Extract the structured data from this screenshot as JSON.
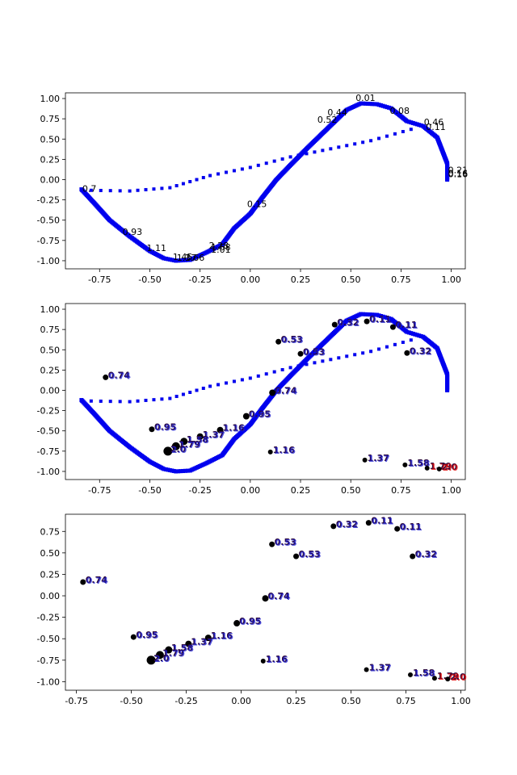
{
  "colors": {
    "curve": "#0000ee",
    "point": "#000000",
    "label_dark": "#2b0a3d",
    "label_blue": "#1a1acc",
    "label_red": "#dd0000",
    "axis": "#000000"
  },
  "chart_data": [
    {
      "type": "scatter",
      "xlim": [
        -0.92,
        1.07
      ],
      "ylim": [
        -1.1,
        1.07
      ],
      "xticks": [
        "-0.75",
        "-0.50",
        "-0.25",
        "0.00",
        "0.25",
        "0.50",
        "0.75",
        "1.00"
      ],
      "xtick_values": [
        -0.75,
        -0.5,
        -0.25,
        0.0,
        0.25,
        0.5,
        0.75,
        1.0
      ],
      "yticks": [
        "1.00",
        "0.75",
        "0.50",
        "0.25",
        "0.00",
        "-0.25",
        "-0.50",
        "-0.75",
        "-1.00"
      ],
      "ytick_values": [
        1.0,
        0.75,
        0.5,
        0.25,
        0.0,
        -0.25,
        -0.5,
        -0.75,
        -1.0
      ],
      "curve_anchors": [
        [
          -0.84,
          -0.12
        ],
        [
          -0.78,
          -0.28
        ],
        [
          -0.7,
          -0.5
        ],
        [
          -0.6,
          -0.7
        ],
        [
          -0.5,
          -0.88
        ],
        [
          -0.43,
          -0.97
        ],
        [
          -0.37,
          -1.0
        ],
        [
          -0.3,
          -0.99
        ],
        [
          -0.22,
          -0.9
        ],
        [
          -0.14,
          -0.8
        ],
        [
          -0.08,
          -0.6
        ],
        [
          0.0,
          -0.42
        ],
        [
          0.06,
          -0.22
        ],
        [
          0.13,
          0.0
        ],
        [
          0.2,
          0.18
        ],
        [
          0.28,
          0.38
        ],
        [
          0.38,
          0.62
        ],
        [
          0.48,
          0.86
        ],
        [
          0.55,
          0.94
        ],
        [
          0.63,
          0.93
        ],
        [
          0.7,
          0.88
        ],
        [
          0.78,
          0.72
        ],
        [
          0.86,
          0.66
        ],
        [
          0.93,
          0.52
        ],
        [
          0.98,
          0.2
        ],
        [
          0.98,
          0.0
        ]
      ],
      "sparse_line": [
        [
          -0.84,
          -0.13
        ],
        [
          -0.6,
          -0.14
        ],
        [
          -0.4,
          -0.1
        ],
        [
          -0.2,
          0.05
        ],
        [
          0.0,
          0.15
        ],
        [
          0.2,
          0.28
        ],
        [
          0.4,
          0.38
        ],
        [
          0.6,
          0.48
        ],
        [
          0.8,
          0.62
        ]
      ],
      "labels": [
        {
          "x": 0.52,
          "y": 0.99,
          "t": "0.01"
        },
        {
          "x": 0.69,
          "y": 0.83,
          "t": "0.08"
        },
        {
          "x": 0.38,
          "y": 0.81,
          "t": "0.44"
        },
        {
          "x": 0.33,
          "y": 0.72,
          "t": "0.52"
        },
        {
          "x": 0.86,
          "y": 0.69,
          "t": "0.46"
        },
        {
          "x": 0.87,
          "y": 0.63,
          "t": "0.11"
        },
        {
          "x": 0.98,
          "y": 0.1,
          "t": "0.21"
        },
        {
          "x": 0.98,
          "y": 0.06,
          "t": "0.16"
        },
        {
          "x": 0.98,
          "y": 0.05,
          "t": "0.16"
        },
        {
          "x": -0.84,
          "y": -0.13,
          "t": "0.7"
        },
        {
          "x": -0.02,
          "y": -0.32,
          "t": "0.15"
        },
        {
          "x": -0.64,
          "y": -0.66,
          "t": "0.93"
        },
        {
          "x": -0.52,
          "y": -0.86,
          "t": "1.11"
        },
        {
          "x": -0.39,
          "y": -0.97,
          "t": "1.45"
        },
        {
          "x": -0.37,
          "y": -0.98,
          "t": "1.37"
        },
        {
          "x": -0.33,
          "y": -0.98,
          "t": "1.66"
        },
        {
          "x": -0.21,
          "y": -0.83,
          "t": "2.28"
        },
        {
          "x": -0.2,
          "y": -0.85,
          "t": "1.58"
        },
        {
          "x": -0.2,
          "y": -0.88,
          "t": "1.01"
        }
      ]
    },
    {
      "type": "scatter",
      "xlim": [
        -0.92,
        1.07
      ],
      "ylim": [
        -1.1,
        1.07
      ],
      "xticks": [
        "-0.75",
        "-0.50",
        "-0.25",
        "0.00",
        "0.25",
        "0.50",
        "0.75",
        "1.00"
      ],
      "xtick_values": [
        -0.75,
        -0.5,
        -0.25,
        0.0,
        0.25,
        0.5,
        0.75,
        1.0
      ],
      "yticks": [
        "1.00",
        "0.75",
        "0.50",
        "0.25",
        "0.00",
        "-0.25",
        "-0.50",
        "-0.75",
        "-1.00"
      ],
      "ytick_values": [
        1.0,
        0.75,
        0.5,
        0.25,
        0.0,
        -0.25,
        -0.5,
        -0.75,
        -1.0
      ],
      "curve_anchors": [
        [
          -0.84,
          -0.12
        ],
        [
          -0.78,
          -0.28
        ],
        [
          -0.7,
          -0.5
        ],
        [
          -0.6,
          -0.7
        ],
        [
          -0.5,
          -0.88
        ],
        [
          -0.43,
          -0.97
        ],
        [
          -0.37,
          -1.0
        ],
        [
          -0.3,
          -0.99
        ],
        [
          -0.22,
          -0.9
        ],
        [
          -0.14,
          -0.8
        ],
        [
          -0.08,
          -0.6
        ],
        [
          0.0,
          -0.42
        ],
        [
          0.06,
          -0.22
        ],
        [
          0.13,
          0.0
        ],
        [
          0.2,
          0.18
        ],
        [
          0.28,
          0.38
        ],
        [
          0.38,
          0.62
        ],
        [
          0.48,
          0.86
        ],
        [
          0.55,
          0.94
        ],
        [
          0.63,
          0.93
        ],
        [
          0.7,
          0.88
        ],
        [
          0.78,
          0.72
        ],
        [
          0.86,
          0.66
        ],
        [
          0.93,
          0.52
        ],
        [
          0.98,
          0.2
        ],
        [
          0.98,
          0.0
        ]
      ],
      "sparse_line": [
        [
          -0.84,
          -0.13
        ],
        [
          -0.6,
          -0.14
        ],
        [
          -0.4,
          -0.1
        ],
        [
          -0.2,
          0.05
        ],
        [
          0.0,
          0.15
        ],
        [
          0.2,
          0.28
        ],
        [
          0.4,
          0.38
        ],
        [
          0.6,
          0.48
        ],
        [
          0.8,
          0.62
        ]
      ],
      "points": [
        {
          "x": 0.42,
          "y": 0.81,
          "t": "0.32",
          "s": 3.5,
          "c": "blue"
        },
        {
          "x": 0.58,
          "y": 0.85,
          "t": "0.11",
          "s": 3.5,
          "c": "blue"
        },
        {
          "x": 0.71,
          "y": 0.78,
          "t": "0.11",
          "s": 3.5,
          "c": "blue"
        },
        {
          "x": 0.78,
          "y": 0.46,
          "t": "0.32",
          "s": 3.5,
          "c": "blue"
        },
        {
          "x": 0.14,
          "y": 0.6,
          "t": "0.53",
          "s": 3.5,
          "c": "blue"
        },
        {
          "x": 0.25,
          "y": 0.45,
          "t": "0.53",
          "s": 3.5,
          "c": "blue"
        },
        {
          "x": -0.72,
          "y": 0.16,
          "t": "0.74",
          "s": 3.5,
          "c": "blue"
        },
        {
          "x": 0.11,
          "y": -0.03,
          "t": "0.74",
          "s": 4,
          "c": "blue"
        },
        {
          "x": -0.02,
          "y": -0.32,
          "t": "0.95",
          "s": 4,
          "c": "blue"
        },
        {
          "x": -0.49,
          "y": -0.48,
          "t": "0.95",
          "s": 3.5,
          "c": "blue"
        },
        {
          "x": -0.15,
          "y": -0.49,
          "t": "1.16",
          "s": 4,
          "c": "blue"
        },
        {
          "x": 0.1,
          "y": -0.76,
          "t": "1.16",
          "s": 3,
          "c": "blue"
        },
        {
          "x": -0.25,
          "y": -0.57,
          "t": "1.37",
          "s": 4,
          "c": "blue"
        },
        {
          "x": 0.57,
          "y": -0.86,
          "t": "1.37",
          "s": 3,
          "c": "blue"
        },
        {
          "x": -0.33,
          "y": -0.63,
          "t": "1.58",
          "s": 4.5,
          "c": "blue"
        },
        {
          "x": 0.77,
          "y": -0.92,
          "t": "1.58",
          "s": 3,
          "c": "blue"
        },
        {
          "x": -0.37,
          "y": -0.69,
          "t": "1.79",
          "s": 5,
          "c": "blue"
        },
        {
          "x": 0.88,
          "y": -0.96,
          "t": "1.79",
          "s": 3,
          "c": "red"
        },
        {
          "x": -0.41,
          "y": -0.75,
          "t": "2.0",
          "s": 5.5,
          "c": "blue"
        },
        {
          "x": 0.94,
          "y": -0.97,
          "t": "2.0",
          "s": 3,
          "c": "red"
        }
      ]
    },
    {
      "type": "scatter",
      "xlim": [
        -0.8,
        1.02
      ],
      "ylim": [
        -1.1,
        0.95
      ],
      "xticks": [
        "-0.75",
        "-0.50",
        "-0.25",
        "0.00",
        "0.25",
        "0.50",
        "0.75",
        "1.00"
      ],
      "xtick_values": [
        -0.75,
        -0.5,
        -0.25,
        0.0,
        0.25,
        0.5,
        0.75,
        1.0
      ],
      "yticks": [
        "0.75",
        "0.50",
        "0.25",
        "0.00",
        "-0.25",
        "-0.50",
        "-0.75",
        "-1.00"
      ],
      "ytick_values": [
        0.75,
        0.5,
        0.25,
        0.0,
        -0.25,
        -0.5,
        -0.75,
        -1.0
      ],
      "points": [
        {
          "x": 0.42,
          "y": 0.81,
          "t": "0.32",
          "s": 3.5,
          "c": "blue"
        },
        {
          "x": 0.58,
          "y": 0.85,
          "t": "0.11",
          "s": 3.5,
          "c": "blue"
        },
        {
          "x": 0.71,
          "y": 0.78,
          "t": "0.11",
          "s": 3.5,
          "c": "blue"
        },
        {
          "x": 0.78,
          "y": 0.46,
          "t": "0.32",
          "s": 3.5,
          "c": "blue"
        },
        {
          "x": 0.14,
          "y": 0.6,
          "t": "0.53",
          "s": 3.5,
          "c": "blue"
        },
        {
          "x": 0.25,
          "y": 0.46,
          "t": "0.53",
          "s": 3.5,
          "c": "blue"
        },
        {
          "x": -0.72,
          "y": 0.16,
          "t": "0.74",
          "s": 3.5,
          "c": "blue"
        },
        {
          "x": 0.11,
          "y": -0.03,
          "t": "0.74",
          "s": 4,
          "c": "blue"
        },
        {
          "x": -0.02,
          "y": -0.32,
          "t": "0.95",
          "s": 4,
          "c": "blue"
        },
        {
          "x": -0.49,
          "y": -0.48,
          "t": "0.95",
          "s": 3.5,
          "c": "blue"
        },
        {
          "x": -0.15,
          "y": -0.49,
          "t": "1.16",
          "s": 4,
          "c": "blue"
        },
        {
          "x": 0.1,
          "y": -0.76,
          "t": "1.16",
          "s": 3,
          "c": "blue"
        },
        {
          "x": -0.24,
          "y": -0.56,
          "t": "1.37",
          "s": 4,
          "c": "blue"
        },
        {
          "x": 0.57,
          "y": -0.86,
          "t": "1.37",
          "s": 3,
          "c": "blue"
        },
        {
          "x": -0.33,
          "y": -0.63,
          "t": "1.58",
          "s": 4.5,
          "c": "blue"
        },
        {
          "x": 0.77,
          "y": -0.92,
          "t": "1.58",
          "s": 3,
          "c": "blue"
        },
        {
          "x": -0.37,
          "y": -0.69,
          "t": "1.79",
          "s": 5,
          "c": "blue"
        },
        {
          "x": 0.88,
          "y": -0.96,
          "t": "1.79",
          "s": 3,
          "c": "red"
        },
        {
          "x": -0.41,
          "y": -0.75,
          "t": "2.0",
          "s": 5.5,
          "c": "blue"
        },
        {
          "x": 0.94,
          "y": -0.97,
          "t": "2.0",
          "s": 3,
          "c": "red"
        }
      ]
    }
  ]
}
